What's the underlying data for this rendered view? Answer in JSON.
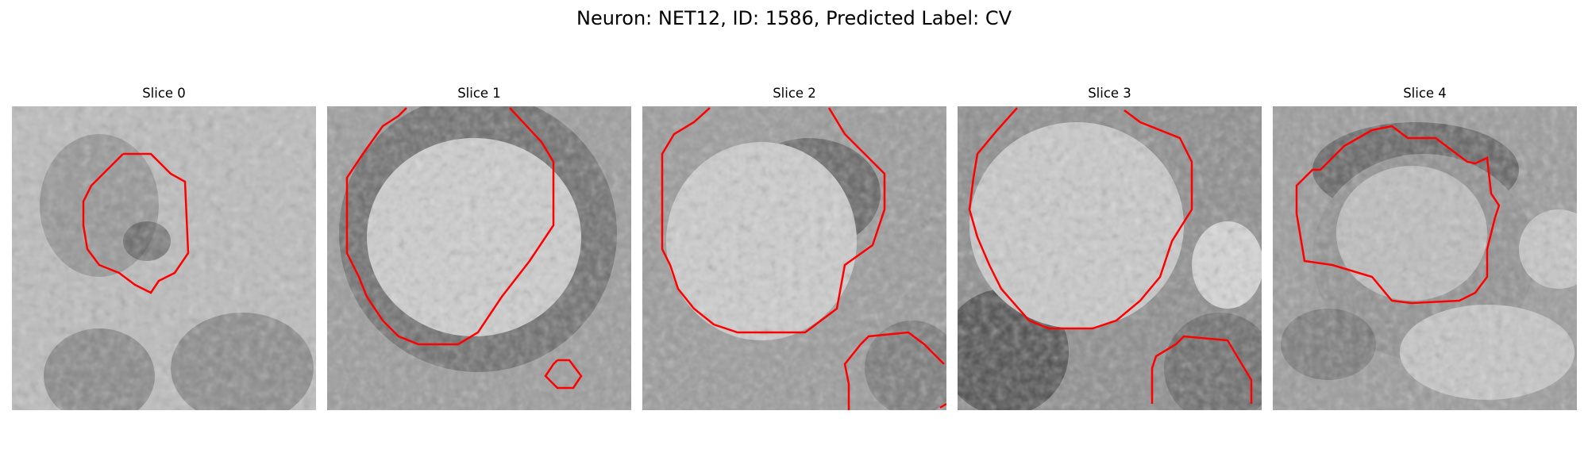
{
  "figure": {
    "title": "Neuron: NET12, ID: 1586, Predicted Label: CV"
  },
  "panels": [
    {
      "title": "Slice 0"
    },
    {
      "title": "Slice 1"
    },
    {
      "title": "Slice 2"
    },
    {
      "title": "Slice 3"
    },
    {
      "title": "Slice 4"
    }
  ],
  "colors": {
    "contour": "#ff0000",
    "colormap": "grayscale"
  }
}
